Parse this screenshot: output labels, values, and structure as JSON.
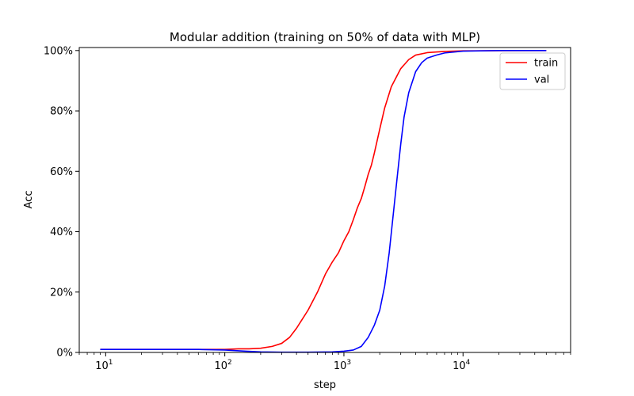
{
  "chart_data": {
    "type": "line",
    "title": "Modular addition (training on 50% of data with MLP)",
    "xlabel": "step",
    "ylabel": "Acc",
    "xscale": "log",
    "xlim": [
      6,
      80000
    ],
    "ylim": [
      0,
      1.01
    ],
    "grid": false,
    "legend_position": "top-right",
    "x_ticks": [
      {
        "value": 10,
        "base": "10",
        "exp": "1"
      },
      {
        "value": 100,
        "base": "10",
        "exp": "2"
      },
      {
        "value": 1000,
        "base": "10",
        "exp": "3"
      },
      {
        "value": 10000,
        "base": "10",
        "exp": "4"
      }
    ],
    "y_ticks": [
      {
        "value": 0.0,
        "label": "0%"
      },
      {
        "value": 0.2,
        "label": "20%"
      },
      {
        "value": 0.4,
        "label": "40%"
      },
      {
        "value": 0.6,
        "label": "60%"
      },
      {
        "value": 0.8,
        "label": "80%"
      },
      {
        "value": 1.0,
        "label": "100%"
      }
    ],
    "series": [
      {
        "name": "train",
        "color": "#ff0000",
        "points": [
          [
            9,
            0.01
          ],
          [
            15,
            0.01
          ],
          [
            30,
            0.01
          ],
          [
            60,
            0.01
          ],
          [
            100,
            0.01
          ],
          [
            130,
            0.012
          ],
          [
            160,
            0.012
          ],
          [
            200,
            0.014
          ],
          [
            250,
            0.02
          ],
          [
            300,
            0.03
          ],
          [
            350,
            0.05
          ],
          [
            400,
            0.08
          ],
          [
            500,
            0.14
          ],
          [
            600,
            0.2
          ],
          [
            700,
            0.26
          ],
          [
            800,
            0.3
          ],
          [
            900,
            0.33
          ],
          [
            1000,
            0.37
          ],
          [
            1100,
            0.4
          ],
          [
            1200,
            0.44
          ],
          [
            1300,
            0.48
          ],
          [
            1400,
            0.51
          ],
          [
            1500,
            0.55
          ],
          [
            1600,
            0.59
          ],
          [
            1700,
            0.62
          ],
          [
            1800,
            0.66
          ],
          [
            2000,
            0.74
          ],
          [
            2200,
            0.81
          ],
          [
            2500,
            0.88
          ],
          [
            3000,
            0.94
          ],
          [
            3500,
            0.97
          ],
          [
            4000,
            0.985
          ],
          [
            5000,
            0.993
          ],
          [
            7000,
            0.997
          ],
          [
            10000,
            0.999
          ],
          [
            50000,
            1.0
          ]
        ]
      },
      {
        "name": "val",
        "color": "#0000ff",
        "points": [
          [
            9,
            0.01
          ],
          [
            15,
            0.01
          ],
          [
            30,
            0.01
          ],
          [
            60,
            0.01
          ],
          [
            100,
            0.008
          ],
          [
            150,
            0.004
          ],
          [
            200,
            0.002
          ],
          [
            300,
            0.001
          ],
          [
            500,
            0.001
          ],
          [
            800,
            0.002
          ],
          [
            1000,
            0.004
          ],
          [
            1200,
            0.008
          ],
          [
            1400,
            0.02
          ],
          [
            1600,
            0.05
          ],
          [
            1800,
            0.09
          ],
          [
            2000,
            0.14
          ],
          [
            2200,
            0.22
          ],
          [
            2400,
            0.33
          ],
          [
            2600,
            0.46
          ],
          [
            2800,
            0.58
          ],
          [
            3000,
            0.69
          ],
          [
            3200,
            0.78
          ],
          [
            3500,
            0.86
          ],
          [
            4000,
            0.93
          ],
          [
            4500,
            0.96
          ],
          [
            5000,
            0.975
          ],
          [
            6000,
            0.985
          ],
          [
            7000,
            0.992
          ],
          [
            10000,
            0.998
          ],
          [
            20000,
            1.0
          ],
          [
            50000,
            1.0
          ]
        ]
      }
    ]
  }
}
